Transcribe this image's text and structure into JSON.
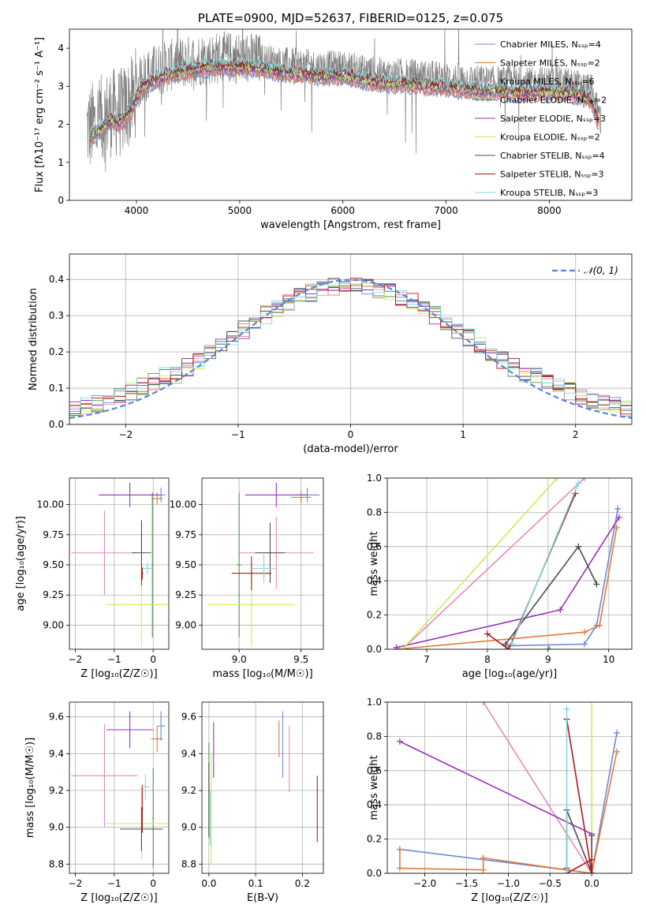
{
  "colors": {
    "Chabrier MILES": "#6a8ad6",
    "Salpeter MILES": "#e07b39",
    "Kroupa MILES": "#e889b9",
    "Chabrier ELODIE": "#5a8f5a",
    "Salpeter ELODIE": "#9b30b8",
    "Kroupa ELODIE": "#c9ee55",
    "Chabrier STELIB": "#4d4d4d",
    "Salpeter STELIB": "#b01818",
    "Kroupa STELIB": "#7fd9dc",
    "data": "#808080",
    "normal": "#5b84d6"
  },
  "chart_data": [
    {
      "id": "spectrum",
      "type": "line",
      "title": "PLATE=0900, MJD=52637, FIBERID=0125, z=0.075",
      "xlabel": "wavelength [Angstrom, rest frame]",
      "ylabel": "Flux [fλ10⁻¹⁷ erg cm⁻² s⁻¹ A⁻¹]",
      "xlim": [
        3350,
        8800
      ],
      "ylim": [
        0,
        4.5
      ],
      "xticks": [
        4000,
        5000,
        6000,
        7000,
        8000
      ],
      "yticks": [
        0,
        1,
        2,
        3,
        4
      ],
      "legend_position": "upper-right",
      "legend": [
        {
          "label": "Chabrier MILES, Nₛₛₚ=4",
          "color_key": "Chabrier MILES"
        },
        {
          "label": "Salpeter MILES, Nₛₛₚ=2",
          "color_key": "Salpeter MILES"
        },
        {
          "label": "Kroupa MILES, Nₛₛₚ=6",
          "color_key": "Kroupa MILES"
        },
        {
          "label": "Chabrier ELODIE, Nₛₛₚ=2",
          "color_key": "Chabrier ELODIE"
        },
        {
          "label": "Salpeter ELODIE, Nₛₛₚ=3",
          "color_key": "Salpeter ELODIE"
        },
        {
          "label": "Kroupa ELODIE, Nₛₛₚ=2",
          "color_key": "Kroupa ELODIE"
        },
        {
          "label": "Chabrier STELIB, Nₛₛₚ=4",
          "color_key": "Chabrier STELIB"
        },
        {
          "label": "Salpeter STELIB, Nₛₛₚ=3",
          "color_key": "Salpeter STELIB"
        },
        {
          "label": "Kroupa STELIB, Nₛₛₚ=3",
          "color_key": "Kroupa STELIB"
        }
      ],
      "continuum": {
        "x": [
          3550,
          3650,
          3750,
          3850,
          3950,
          4050,
          4200,
          4400,
          4600,
          4800,
          5000,
          5200,
          5400,
          5600,
          5800,
          6000,
          6200,
          6400,
          6600,
          6800,
          7000,
          7200,
          7400,
          7600,
          7800,
          8000,
          8200,
          8400,
          8500
        ],
        "y": [
          1.9,
          2.1,
          2.3,
          2.3,
          2.6,
          3.2,
          3.45,
          3.6,
          3.7,
          3.75,
          3.75,
          3.7,
          3.6,
          3.55,
          3.5,
          3.5,
          3.4,
          3.3,
          3.3,
          3.25,
          3.2,
          3.15,
          3.1,
          3.1,
          3.05,
          3.1,
          3.05,
          2.9,
          2.1
        ]
      }
    },
    {
      "id": "residuals",
      "type": "histogram",
      "xlabel": "(data-model)/error",
      "ylabel": "Normed distribution",
      "xlim": [
        -2.5,
        2.5
      ],
      "ylim": [
        0,
        0.47
      ],
      "xticks": [
        -2,
        -1,
        0,
        1,
        2
      ],
      "yticks": [
        0.0,
        0.1,
        0.2,
        0.3,
        0.4
      ],
      "legend_position": "upper-right",
      "normal_label": "𝒩(0, 1)"
    },
    {
      "id": "age-vs-Z",
      "type": "errorbar",
      "xlabel": "Z [log₁₀(Z/Z☉)]",
      "ylabel": "age  [log₁₀(age/yr)]",
      "xlim": [
        -2.15,
        0.4
      ],
      "ylim": [
        8.8,
        10.22
      ],
      "xticks": [
        -2,
        -1,
        0
      ],
      "yticks": [
        9.0,
        9.25,
        9.5,
        9.75,
        10.0
      ],
      "points": [
        {
          "k": "Chabrier MILES",
          "x": 0.2,
          "xe": 0.12,
          "y": 10.08,
          "ye": 0.06
        },
        {
          "k": "Salpeter MILES",
          "x": 0.1,
          "xe": 0.15,
          "y": 10.05,
          "ye": 0.05
        },
        {
          "k": "Kroupa MILES",
          "x": -1.25,
          "xe": 0.85,
          "y": 9.6,
          "ye": 0.35
        },
        {
          "k": "Chabrier ELODIE",
          "x": -0.02,
          "xe": 0.02,
          "y": 9.5,
          "ye": 0.6
        },
        {
          "k": "Salpeter ELODIE",
          "x": -0.6,
          "xe": 0.8,
          "y": 10.08,
          "ye": 0.1
        },
        {
          "k": "Kroupa ELODIE",
          "x": -0.3,
          "xe": 0.9,
          "y": 9.17,
          "ye": 0.35
        },
        {
          "k": "Chabrier STELIB",
          "x": -0.3,
          "xe": 0.25,
          "y": 9.6,
          "ye": 0.27
        },
        {
          "k": "Salpeter STELIB",
          "x": -0.28,
          "xe": 0.03,
          "y": 9.43,
          "ye": 0.05
        },
        {
          "k": "Kroupa STELIB",
          "x": -0.15,
          "xe": 0.12,
          "y": 9.47,
          "ye": 0.05
        }
      ]
    },
    {
      "id": "age-vs-mass",
      "type": "errorbar",
      "xlabel": "mass [log₁₀(M/M☉)]",
      "ylabel": "",
      "xlim": [
        8.7,
        9.68
      ],
      "ylim": [
        8.8,
        10.22
      ],
      "xticks": [
        9.0,
        9.5
      ],
      "yticks": [
        9.0,
        9.25,
        9.5,
        9.75,
        10.0
      ],
      "points": [
        {
          "k": "Chabrier MILES",
          "x": 9.55,
          "xe": 0.1,
          "y": 10.08,
          "ye": 0.06
        },
        {
          "k": "Salpeter MILES",
          "x": 9.5,
          "xe": 0.08,
          "y": 10.06,
          "ye": 0.05
        },
        {
          "k": "Kroupa MILES",
          "x": 9.3,
          "xe": 0.3,
          "y": 9.6,
          "ye": 0.3
        },
        {
          "k": "Chabrier ELODIE",
          "x": 9.0,
          "xe": 0.02,
          "y": 9.5,
          "ye": 0.6
        },
        {
          "k": "Salpeter ELODIE",
          "x": 9.3,
          "xe": 0.25,
          "y": 10.08,
          "ye": 0.1
        },
        {
          "k": "Kroupa ELODIE",
          "x": 9.1,
          "xe": 0.35,
          "y": 9.17,
          "ye": 0.35
        },
        {
          "k": "Chabrier STELIB",
          "x": 9.25,
          "xe": 0.12,
          "y": 9.6,
          "ye": 0.25
        },
        {
          "k": "Salpeter STELIB",
          "x": 9.1,
          "xe": 0.16,
          "y": 9.43,
          "ye": 0.14
        },
        {
          "k": "Kroupa STELIB",
          "x": 9.2,
          "xe": 0.1,
          "y": 9.47,
          "ye": 0.12
        }
      ]
    },
    {
      "id": "mass-vs-Z",
      "type": "errorbar",
      "xlabel": "Z [log₁₀(Z/Z☉)]",
      "ylabel": "mass [log₁₀(M/M☉)]",
      "xlim": [
        -2.15,
        0.4
      ],
      "ylim": [
        8.75,
        9.68
      ],
      "xticks": [
        -2,
        -1,
        0
      ],
      "yticks": [
        8.8,
        9.0,
        9.2,
        9.4,
        9.6
      ],
      "points": [
        {
          "k": "Chabrier MILES",
          "x": 0.2,
          "xe": 0.1,
          "y": 9.55,
          "ye": 0.08
        },
        {
          "k": "Salpeter MILES",
          "x": 0.1,
          "xe": 0.15,
          "y": 9.48,
          "ye": 0.07
        },
        {
          "k": "Kroupa MILES",
          "x": -1.25,
          "xe": 0.85,
          "y": 9.28,
          "ye": 0.28
        },
        {
          "k": "Chabrier ELODIE",
          "x": 0.0,
          "xe": 0.02,
          "y": 9.05,
          "ye": 0.27
        },
        {
          "k": "Salpeter ELODIE",
          "x": -0.6,
          "xe": 0.6,
          "y": 9.53,
          "ye": 0.1
        },
        {
          "k": "Kroupa ELODIE",
          "x": -0.3,
          "xe": 0.9,
          "y": 9.02,
          "ye": 0.2
        },
        {
          "k": "Chabrier STELIB",
          "x": -0.3,
          "xe": 0.55,
          "y": 8.99,
          "ye": 0.12
        },
        {
          "k": "Salpeter STELIB",
          "x": -0.28,
          "xe": 0.02,
          "y": 9.1,
          "ye": 0.13
        },
        {
          "k": "Kroupa STELIB",
          "x": -0.2,
          "xe": 0.1,
          "y": 9.22,
          "ye": 0.07
        }
      ]
    },
    {
      "id": "mass-vs-ebv",
      "type": "errorbar",
      "xlabel": "E(B-V)",
      "ylabel": "",
      "xlim": [
        -0.015,
        0.245
      ],
      "ylim": [
        8.75,
        9.68
      ],
      "xticks": [
        0.0,
        0.1,
        0.2
      ],
      "yticks": [
        8.8,
        9.0,
        9.2,
        9.4,
        9.6
      ],
      "points": [
        {
          "k": "Chabrier MILES",
          "x": 0.158,
          "xe": 0.0,
          "y": 9.45,
          "ye": 0.18
        },
        {
          "k": "Salpeter MILES",
          "x": 0.15,
          "xe": 0.0,
          "y": 9.48,
          "ye": 0.1
        },
        {
          "k": "Kroupa MILES",
          "x": 0.172,
          "xe": 0.0,
          "y": 9.37,
          "ye": 0.18
        },
        {
          "k": "Chabrier ELODIE",
          "x": 0.0,
          "xe": 0.0,
          "y": 9.2,
          "ye": 0.26
        },
        {
          "k": "Salpeter ELODIE",
          "x": 0.01,
          "xe": 0.0,
          "y": 9.42,
          "ye": 0.15
        },
        {
          "k": "Kroupa ELODIE",
          "x": 0.005,
          "xe": 0.0,
          "y": 9.1,
          "ye": 0.3
        },
        {
          "k": "Chabrier STELIB",
          "x": 0.0,
          "xe": 0.0,
          "y": 9.15,
          "ye": 0.2
        },
        {
          "k": "Salpeter STELIB",
          "x": 0.232,
          "xe": 0.0,
          "y": 9.1,
          "ye": 0.18
        },
        {
          "k": "Kroupa STELIB",
          "x": 0.003,
          "xe": 0.0,
          "y": 9.05,
          "ye": 0.15
        }
      ]
    },
    {
      "id": "weight-vs-age",
      "type": "line",
      "xlabel": "age  [log₁₀(age/yr)]",
      "ylabel": "mass weight",
      "xlim": [
        6.35,
        10.38
      ],
      "ylim": [
        0,
        1.0
      ],
      "xticks": [
        7,
        8,
        9,
        10
      ],
      "yticks": [
        0.0,
        0.2,
        0.4,
        0.6,
        0.8,
        1.0
      ],
      "series": [
        {
          "k": "Chabrier MILES",
          "x": [
            8.3,
            9.6,
            9.8,
            10.15
          ],
          "y": [
            0.02,
            0.03,
            0.14,
            0.82
          ]
        },
        {
          "k": "Salpeter MILES",
          "x": [
            6.5,
            9.6,
            9.85,
            10.13
          ],
          "y": [
            0.0,
            0.1,
            0.14,
            0.71
          ]
        },
        {
          "k": "Kroupa MILES",
          "x": [
            6.6,
            9.6
          ],
          "y": [
            0.0,
            1.0
          ]
        },
        {
          "k": "Chabrier ELODIE",
          "x": [
            9.0,
            9.02
          ],
          "y": [
            0.0,
            0.0
          ]
        },
        {
          "k": "Salpeter ELODIE",
          "x": [
            6.5,
            9.2,
            10.17
          ],
          "y": [
            0.01,
            0.23,
            0.77
          ]
        },
        {
          "k": "Kroupa ELODIE",
          "x": [
            6.6,
            9.15
          ],
          "y": [
            0.0,
            1.0
          ]
        },
        {
          "k": "Chabrier STELIB",
          "x": [
            8.3,
            9.5,
            9.8
          ],
          "y": [
            0.03,
            0.6,
            0.38
          ]
        },
        {
          "k": "Salpeter STELIB",
          "x": [
            8.0,
            8.35,
            9.45
          ],
          "y": [
            0.09,
            0.0,
            0.91
          ]
        },
        {
          "k": "Kroupa STELIB",
          "x": [
            8.4,
            9.5
          ],
          "y": [
            0.03,
            0.97
          ]
        }
      ]
    },
    {
      "id": "weight-vs-Z",
      "type": "line",
      "xlabel": "Z [log₁₀(Z/Z☉)]",
      "ylabel": "mass weight",
      "xlim": [
        -2.45,
        0.48
      ],
      "ylim": [
        0,
        1.0
      ],
      "xticks": [
        -2.0,
        -1.5,
        -1.0,
        -0.5,
        0.0
      ],
      "yticks": [
        0.0,
        0.2,
        0.4,
        0.6,
        0.8,
        1.0
      ],
      "series": [
        {
          "k": "Chabrier MILES",
          "x": [
            -2.3,
            -0.3,
            0.0,
            0.3
          ],
          "y": [
            0.14,
            0.02,
            0.0,
            0.82
          ]
        },
        {
          "k": "Salpeter MILES",
          "x": [
            -2.3,
            -2.3,
            -1.3,
            -1.3,
            -0.3,
            0.0,
            0.3
          ],
          "y": [
            0.14,
            0.03,
            0.02,
            0.09,
            0.02,
            0.0,
            0.71
          ]
        },
        {
          "k": "Kroupa MILES",
          "x": [
            -1.3,
            0.0
          ],
          "y": [
            1.0,
            0.0
          ]
        },
        {
          "k": "Chabrier ELODIE",
          "x": [
            0.0,
            0.0
          ],
          "y": [
            0.0,
            0.0
          ]
        },
        {
          "k": "Salpeter ELODIE",
          "x": [
            -2.3,
            0.0
          ],
          "y": [
            0.77,
            0.23
          ]
        },
        {
          "k": "Kroupa ELODIE",
          "x": [
            0.0,
            0.0
          ],
          "y": [
            0.0,
            1.0
          ]
        },
        {
          "k": "Chabrier STELIB",
          "x": [
            -0.3,
            -0.3,
            0.0,
            0.0
          ],
          "y": [
            0.03,
            0.37,
            0.0,
            0.22
          ]
        },
        {
          "k": "Salpeter STELIB",
          "x": [
            -0.3,
            0.0,
            0.0,
            -0.3
          ],
          "y": [
            0.0,
            0.08,
            0.0,
            0.9
          ]
        },
        {
          "k": "Kroupa STELIB",
          "x": [
            -0.3,
            -0.3
          ],
          "y": [
            0.0,
            0.96
          ]
        }
      ]
    }
  ]
}
